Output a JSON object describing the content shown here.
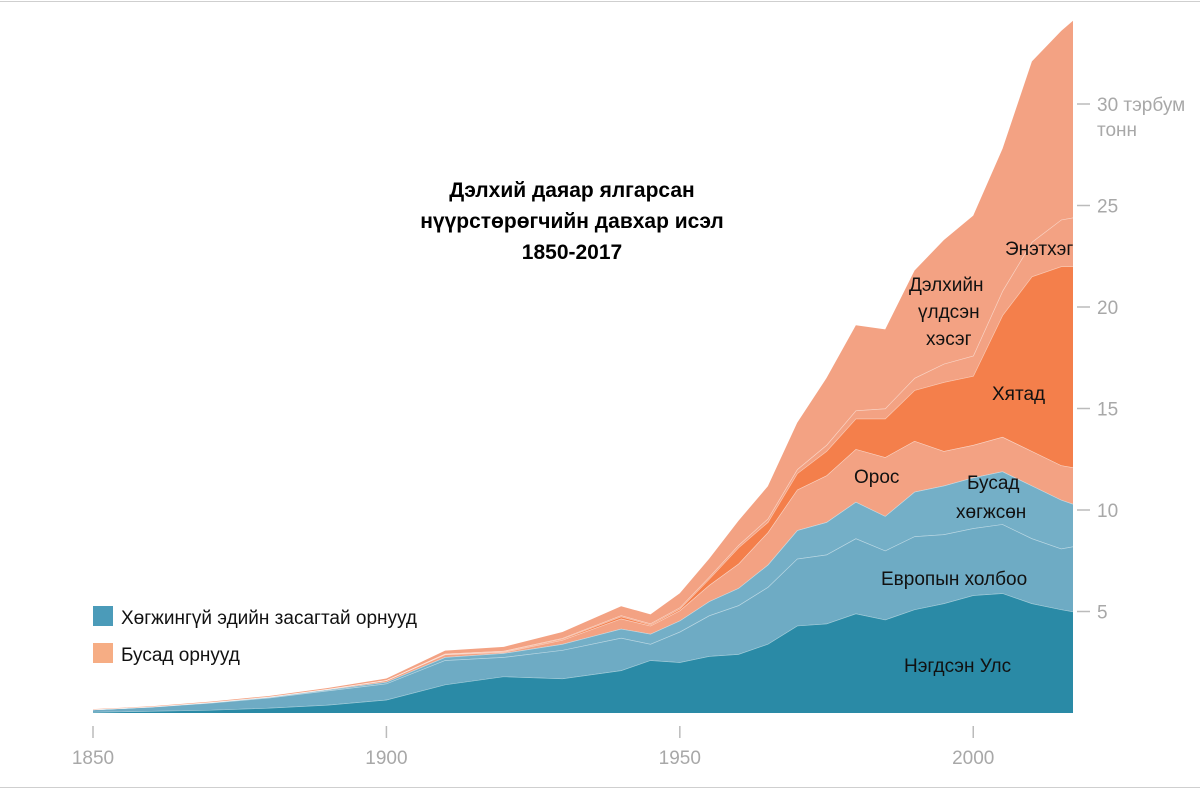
{
  "chart_data": {
    "type": "area",
    "stacked": true,
    "title": [
      "Дэлхий даяар ялгарсан",
      "нүүрстөрөгчийн давхар исэл",
      "1850-2017"
    ],
    "ylabel_unit": [
      "тэрбум",
      "тонн"
    ],
    "xlim": [
      1850,
      2017
    ],
    "ylim": [
      0,
      34
    ],
    "x_ticks": [
      1850,
      1900,
      1950,
      2000
    ],
    "y_ticks": [
      5,
      10,
      15,
      20,
      25,
      30
    ],
    "y_tick_labels": [
      "5",
      "10",
      "15",
      "20",
      "25",
      "30 тэрбум"
    ],
    "grid": false,
    "legend_placement": "bottom-left",
    "legend": [
      {
        "label": "Хөгжингүй эдийн засагтай орнууд",
        "color": "#4b9bb9"
      },
      {
        "label": "Бусад орнууд",
        "color": "#f6ad84"
      }
    ],
    "x": [
      1850,
      1860,
      1870,
      1880,
      1890,
      1900,
      1910,
      1920,
      1930,
      1940,
      1945,
      1950,
      1955,
      1960,
      1965,
      1970,
      1975,
      1980,
      1985,
      1990,
      1995,
      2000,
      2005,
      2010,
      2015,
      2017
    ],
    "series": [
      {
        "name": "Нэгдсэн Улс",
        "color": "#2a8aa6",
        "values": [
          0.05,
          0.1,
          0.15,
          0.25,
          0.4,
          0.65,
          1.4,
          1.8,
          1.7,
          2.1,
          2.6,
          2.5,
          2.8,
          2.9,
          3.4,
          4.3,
          4.4,
          4.9,
          4.6,
          5.1,
          5.4,
          5.8,
          5.9,
          5.4,
          5.1,
          5.0
        ]
      },
      {
        "name": "Европын холбоо",
        "color": "#6eabc4",
        "values": [
          0.12,
          0.2,
          0.35,
          0.5,
          0.7,
          0.8,
          1.2,
          0.95,
          1.4,
          1.6,
          0.8,
          1.5,
          2.0,
          2.4,
          2.8,
          3.3,
          3.4,
          3.7,
          3.4,
          3.6,
          3.4,
          3.3,
          3.4,
          3.2,
          3.0,
          3.2
        ]
      },
      {
        "name": "Бусад хөгжсөн",
        "color": "#74afc7",
        "values": [
          0.0,
          0.01,
          0.02,
          0.03,
          0.05,
          0.08,
          0.15,
          0.2,
          0.3,
          0.45,
          0.5,
          0.55,
          0.7,
          0.85,
          1.1,
          1.4,
          1.6,
          1.8,
          1.7,
          2.2,
          2.4,
          2.5,
          2.6,
          2.6,
          2.4,
          2.1
        ]
      },
      {
        "name": "Орос",
        "color": "#f3a283",
        "values": [
          0.0,
          0.0,
          0.01,
          0.02,
          0.03,
          0.08,
          0.13,
          0.05,
          0.2,
          0.5,
          0.4,
          0.5,
          0.8,
          1.2,
          1.6,
          2.0,
          2.3,
          2.6,
          2.9,
          2.5,
          1.7,
          1.6,
          1.7,
          1.7,
          1.7,
          1.8
        ]
      },
      {
        "name": "Хятад",
        "color": "#f47f4b",
        "values": [
          0,
          0,
          0,
          0,
          0,
          0,
          0.02,
          0.03,
          0.05,
          0.1,
          0.05,
          0.08,
          0.3,
          0.8,
          0.5,
          0.8,
          1.2,
          1.5,
          1.9,
          2.5,
          3.4,
          3.4,
          6.0,
          8.6,
          9.8,
          9.9
        ]
      },
      {
        "name": "Энэтхэг",
        "color": "#f3a283",
        "values": [
          0,
          0,
          0,
          0,
          0,
          0.01,
          0.02,
          0.03,
          0.04,
          0.06,
          0.06,
          0.07,
          0.1,
          0.12,
          0.17,
          0.2,
          0.3,
          0.4,
          0.5,
          0.6,
          0.9,
          1.0,
          1.2,
          1.7,
          2.3,
          2.4
        ]
      },
      {
        "name": "Дэлхийн үлдсэн хэсэг",
        "color": "#f3a283",
        "values": [
          0.02,
          0.02,
          0.03,
          0.04,
          0.05,
          0.08,
          0.15,
          0.2,
          0.3,
          0.45,
          0.45,
          0.7,
          0.9,
          1.2,
          1.6,
          2.3,
          3.3,
          4.2,
          3.9,
          5.3,
          6.1,
          6.9,
          7.0,
          8.9,
          9.3,
          9.7
        ]
      }
    ],
    "area_labels": {
      "us": "Нэгдсэн Улс",
      "eu": "Европын холбоо",
      "other_dev": [
        "Бусад",
        "хөгжсөн"
      ],
      "russia": "Орос",
      "china": "Хятад",
      "india": "Энэтхэг",
      "rest": [
        "Дэлхийн",
        "үлдсэн",
        "хэсэг"
      ]
    }
  }
}
